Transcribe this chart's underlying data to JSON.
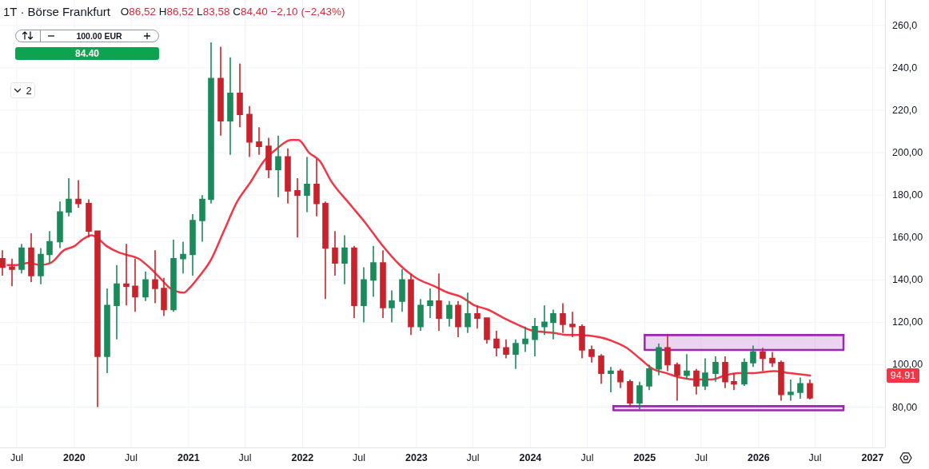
{
  "chart_data": {
    "type": "candlestick",
    "title": "1T · Börse Frankfurt",
    "subtitle": "O86,52 H86,52 L83,58 C84,40 −2,10 (−2,43%)",
    "annotations": [
      "100.00 EUR",
      "84.40",
      "2",
      {
        "text": "94,91",
        "y": 94.91
      }
    ],
    "x": [
      "2019-05-15",
      "2019-06-15",
      "2019-07-15",
      "2019-08-15",
      "2019-09-15",
      "2019-10-15",
      "2019-11-15",
      "2019-12-15",
      "2020-01-15",
      "2020-02-15",
      "2020-03-15",
      "2020-04-15",
      "2020-05-15",
      "2020-06-15",
      "2020-07-15",
      "2020-08-15",
      "2020-09-15",
      "2020-10-15",
      "2020-11-15",
      "2020-12-15",
      "2021-01-15",
      "2021-02-15",
      "2021-03-15",
      "2021-04-15",
      "2021-05-15",
      "2021-06-15",
      "2021-07-15",
      "2021-08-15",
      "2021-09-15",
      "2021-10-15",
      "2021-11-15",
      "2021-12-15",
      "2022-01-15",
      "2022-02-15",
      "2022-03-15",
      "2022-04-15",
      "2022-05-15",
      "2022-06-15",
      "2022-07-15",
      "2022-08-15",
      "2022-09-15",
      "2022-10-15",
      "2022-11-15",
      "2022-12-15",
      "2023-01-15",
      "2023-02-15",
      "2023-03-15",
      "2023-04-15",
      "2023-05-15",
      "2023-06-15",
      "2023-07-15",
      "2023-08-15",
      "2023-09-15",
      "2023-10-15",
      "2023-11-15",
      "2023-12-15",
      "2024-01-15",
      "2024-02-15",
      "2024-03-15",
      "2024-04-15",
      "2024-05-15",
      "2024-06-15",
      "2024-07-15",
      "2024-08-15",
      "2024-09-15",
      "2024-10-15",
      "2024-11-15",
      "2024-12-15",
      "2025-01-15",
      "2025-02-15",
      "2025-03-15",
      "2025-04-15",
      "2025-05-15",
      "2025-06-15",
      "2025-07-15",
      "2025-08-15",
      "2025-09-15",
      "2025-10-15",
      "2025-11-15",
      "2025-12-15",
      "2026-01-15",
      "2026-02-15",
      "2026-03-15",
      "2026-04-15",
      "2026-05-15",
      "2026-06-15"
    ],
    "ohlc": [
      [
        150,
        154,
        142,
        146
      ],
      [
        146,
        150,
        137,
        145
      ],
      [
        145,
        157,
        143,
        155
      ],
      [
        155,
        162,
        139,
        142
      ],
      [
        142,
        155,
        138,
        152
      ],
      [
        152,
        163,
        148,
        158
      ],
      [
        158,
        177,
        155,
        172
      ],
      [
        172,
        188,
        170,
        178
      ],
      [
        178,
        187,
        174,
        176
      ],
      [
        176,
        178,
        160,
        163
      ],
      [
        163,
        163,
        80,
        104
      ],
      [
        104,
        136,
        96,
        128
      ],
      [
        128,
        147,
        112,
        138
      ],
      [
        138,
        157,
        128,
        137
      ],
      [
        137,
        150,
        125,
        132
      ],
      [
        132,
        144,
        130,
        140
      ],
      [
        140,
        154,
        129,
        136
      ],
      [
        136,
        141,
        123,
        126
      ],
      [
        126,
        159,
        125,
        150
      ],
      [
        150,
        158,
        143,
        152
      ],
      [
        152,
        171,
        142,
        168
      ],
      [
        168,
        180,
        158,
        178
      ],
      [
        178,
        252,
        176,
        235
      ],
      [
        235,
        250,
        208,
        215
      ],
      [
        215,
        245,
        199,
        228
      ],
      [
        228,
        242,
        212,
        218
      ],
      [
        218,
        222,
        198,
        205
      ],
      [
        205,
        212,
        199,
        203
      ],
      [
        203,
        207,
        188,
        192
      ],
      [
        192,
        208,
        179,
        198
      ],
      [
        198,
        202,
        176,
        182
      ],
      [
        182,
        188,
        160,
        180
      ],
      [
        180,
        198,
        172,
        185
      ],
      [
        185,
        197,
        170,
        176
      ],
      [
        176,
        177,
        131,
        155
      ],
      [
        155,
        163,
        142,
        148
      ],
      [
        148,
        161,
        138,
        155
      ],
      [
        155,
        156,
        122,
        128
      ],
      [
        128,
        146,
        120,
        140
      ],
      [
        140,
        156,
        132,
        148
      ],
      [
        148,
        154,
        122,
        127
      ],
      [
        127,
        135,
        120,
        130
      ],
      [
        130,
        145,
        125,
        140
      ],
      [
        140,
        143,
        114,
        118
      ],
      [
        118,
        131,
        116,
        128
      ],
      [
        128,
        136,
        122,
        130
      ],
      [
        130,
        143,
        116,
        122
      ],
      [
        122,
        130,
        118,
        128
      ],
      [
        128,
        130,
        113,
        118
      ],
      [
        118,
        134,
        115,
        124
      ],
      [
        124,
        128,
        117,
        122
      ],
      [
        122,
        122,
        110,
        112
      ],
      [
        112,
        116,
        104,
        108
      ],
      [
        108,
        112,
        103,
        105
      ],
      [
        105,
        112,
        98,
        110
      ],
      [
        110,
        118,
        106,
        112
      ],
      [
        112,
        122,
        104,
        118
      ],
      [
        118,
        128,
        114,
        120
      ],
      [
        120,
        126,
        112,
        124
      ],
      [
        124,
        129,
        115,
        119
      ],
      [
        119,
        125,
        113,
        118
      ],
      [
        118,
        119,
        103,
        107
      ],
      [
        107,
        109,
        101,
        104
      ],
      [
        104,
        105,
        91,
        96
      ],
      [
        96,
        99,
        87,
        97
      ],
      [
        97,
        98,
        89,
        92
      ],
      [
        92,
        93,
        80,
        82
      ],
      [
        82,
        92,
        79,
        90
      ],
      [
        90,
        100,
        88,
        98
      ],
      [
        98,
        110,
        95,
        108
      ],
      [
        108,
        114,
        97,
        100
      ],
      [
        100,
        101,
        83,
        95
      ],
      [
        95,
        105,
        93,
        97
      ],
      [
        97,
        98,
        86,
        90
      ],
      [
        90,
        103,
        88,
        96
      ],
      [
        96,
        104,
        92,
        101
      ],
      [
        101,
        104,
        89,
        92
      ],
      [
        92,
        96,
        88,
        91
      ],
      [
        91,
        103,
        90,
        101
      ],
      [
        101,
        109,
        99,
        106
      ],
      [
        106,
        108,
        97,
        103
      ],
      [
        103,
        106,
        99,
        101
      ],
      [
        101,
        102,
        83,
        86
      ],
      [
        86,
        93,
        83,
        87
      ],
      [
        87,
        94,
        84,
        91
      ],
      [
        91,
        93,
        83.58,
        84.4
      ]
    ],
    "colors": [
      "#c8232c",
      "#c8232c",
      "#1b8a5a",
      "#c8232c",
      "#1b8a5a",
      "#1b8a5a",
      "#1b8a5a",
      "#1b8a5a",
      "#c8232c",
      "#c8232c",
      "#c8232c",
      "#1b8a5a",
      "#1b8a5a",
      "#c8232c",
      "#c8232c",
      "#1b8a5a",
      "#c8232c",
      "#c8232c",
      "#1b8a5a",
      "#1b8a5a",
      "#1b8a5a",
      "#1b8a5a",
      "#1b8a5a",
      "#c8232c",
      "#1b8a5a",
      "#c8232c",
      "#c8232c",
      "#c8232c",
      "#c8232c",
      "#1b8a5a",
      "#c8232c",
      "#c8232c",
      "#1b8a5a",
      "#c8232c",
      "#c8232c",
      "#c8232c",
      "#1b8a5a",
      "#c8232c",
      "#1b8a5a",
      "#1b8a5a",
      "#c8232c",
      "#1b8a5a",
      "#1b8a5a",
      "#c8232c",
      "#1b8a5a",
      "#1b8a5a",
      "#c8232c",
      "#1b8a5a",
      "#c8232c",
      "#1b8a5a",
      "#c8232c",
      "#c8232c",
      "#c8232c",
      "#c8232c",
      "#1b8a5a",
      "#1b8a5a",
      "#1b8a5a",
      "#1b8a5a",
      "#1b8a5a",
      "#c8232c",
      "#c8232c",
      "#c8232c",
      "#c8232c",
      "#c8232c",
      "#1b8a5a",
      "#c8232c",
      "#c8232c",
      "#1b8a5a",
      "#1b8a5a",
      "#1b8a5a",
      "#c8232c",
      "#c8232c",
      "#1b8a5a",
      "#c8232c",
      "#1b8a5a",
      "#1b8a5a",
      "#c8232c",
      "#c8232c",
      "#1b8a5a",
      "#1b8a5a",
      "#c8232c",
      "#c8232c",
      "#c8232c",
      "#1b8a5a",
      "#1b8a5a",
      "#c8232c"
    ],
    "series": [
      {
        "type": "line",
        "color": "#f23645",
        "x": [
          "2019-06-01",
          "2019-06-28",
          "2019-08-10",
          "2019-09-13",
          "2019-10-17",
          "2019-11-29",
          "2020-01-02",
          "2020-01-27",
          "2020-02-26",
          "2020-03-12",
          "2020-04-13",
          "2020-05-22",
          "2020-06-12",
          "2020-07-25",
          "2020-08-28",
          "2020-10-01",
          "2020-11-04",
          "2020-12-17",
          "2021-01-03",
          "2021-02-06",
          "2021-03-12",
          "2021-04-24",
          "2021-06-06",
          "2021-07-18",
          "2021-08-30",
          "2021-10-12",
          "2021-11-24",
          "2021-12-19",
          "2022-01-22",
          "2022-02-26",
          "2022-04-01",
          "2022-05-31",
          "2022-07-21",
          "2022-09-10",
          "2022-11-09",
          "2022-12-30",
          "2023-02-28",
          "2023-04-12",
          "2023-05-24",
          "2023-07-06",
          "2023-08-18",
          "2023-10-08",
          "2023-11-20",
          "2024-01-10",
          "2024-03-18",
          "2024-04-30",
          "2024-06-03",
          "2024-08-10",
          "2024-09-22",
          "2024-11-04",
          "2024-12-16",
          "2025-01-28",
          "2025-03-12",
          "2025-04-24",
          "2025-06-22",
          "2025-08-04",
          "2025-09-16",
          "2025-10-28",
          "2025-12-10",
          "2026-02-22",
          "2026-04-11",
          "2026-06-15"
        ],
        "values": [
          147,
          147,
          148,
          147,
          148,
          154,
          156,
          159,
          161,
          160,
          156,
          153,
          152,
          150,
          146,
          141,
          136,
          134,
          136,
          142,
          149,
          163,
          177,
          186,
          196,
          202,
          206,
          206,
          200,
          196,
          187,
          176,
          167,
          157,
          147,
          141,
          137,
          134,
          132,
          128,
          126,
          122,
          119,
          116,
          115,
          114,
          114,
          113,
          111,
          108,
          103,
          98,
          96,
          94,
          93,
          93,
          95,
          96,
          96,
          97,
          96,
          94.91
        ]
      },
      {
        "type": "line",
        "color": "#9c27b0",
        "x": [
          "2025-01-01",
          "2026-09-30"
        ],
        "values": [
          114,
          114
        ],
        "lower": [
          107,
          107
        ],
        "upper": [
          114,
          114
        ]
      },
      {
        "type": "line",
        "color": "#9c27b0",
        "x": [
          "2024-09-23",
          "2026-09-30"
        ],
        "values": [
          80.5,
          80.5
        ],
        "lower": [
          78.5,
          78.5
        ],
        "upper": [
          80.5,
          80.5
        ]
      }
    ],
    "xlim": [
      "2019-05-08",
      "2027-02-10"
    ],
    "xticks": [
      {
        "value": "2019-07-01",
        "label": "Jul"
      },
      {
        "value": "2020-01-01",
        "label": "2020"
      },
      {
        "value": "2020-07-01",
        "label": "Jul"
      },
      {
        "value": "2021-01-01",
        "label": "2021"
      },
      {
        "value": "2021-07-01",
        "label": "Jul"
      },
      {
        "value": "2022-01-01",
        "label": "2022"
      },
      {
        "value": "2022-07-01",
        "label": "Jul"
      },
      {
        "value": "2023-01-01",
        "label": "2023"
      },
      {
        "value": "2023-07-01",
        "label": "Jul"
      },
      {
        "value": "2024-01-01",
        "label": "2024"
      },
      {
        "value": "2024-07-01",
        "label": "Jul"
      },
      {
        "value": "2025-01-01",
        "label": "2025"
      },
      {
        "value": "2025-07-01",
        "label": "Jul"
      },
      {
        "value": "2026-01-01",
        "label": "2026"
      },
      {
        "value": "2026-07-01",
        "label": "Jul"
      },
      {
        "value": "2027-01-01",
        "label": "2027"
      }
    ],
    "ylim": [
      61,
      272
    ],
    "yticks": [
      {
        "value": 80,
        "label": "80,00"
      },
      {
        "value": 100,
        "label": "100,00"
      },
      {
        "value": 120,
        "label": "120,00"
      },
      {
        "value": 140,
        "label": "140,00"
      },
      {
        "value": 160,
        "label": "160,00"
      },
      {
        "value": 180,
        "label": "180,00"
      },
      {
        "value": 200,
        "label": "200,00"
      },
      {
        "value": 220,
        "label": "220,0"
      },
      {
        "value": 240,
        "label": "240,0"
      },
      {
        "value": 260,
        "label": "260,0"
      }
    ],
    "grid": true
  }
}
